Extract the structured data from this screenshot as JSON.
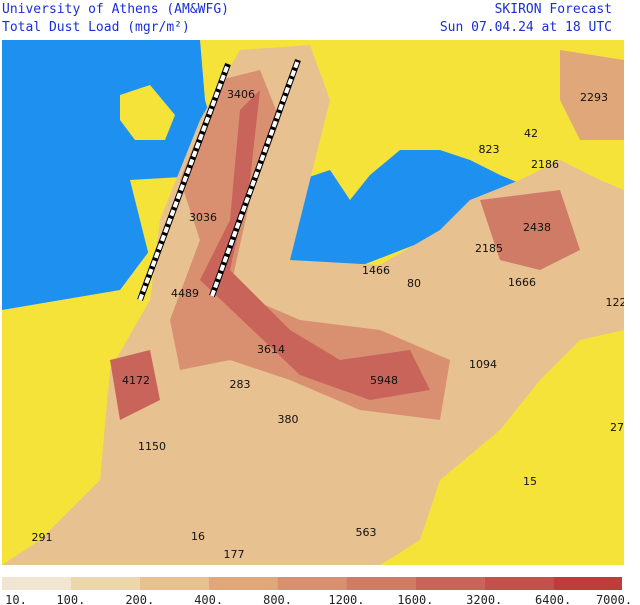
{
  "header": {
    "left": [
      "University of Athens (AM&WFG)",
      "Total Dust Load (mgr/m²)"
    ],
    "right": [
      "SKIRON Forecast",
      "Sun 07.04.24 at 18 UTC"
    ]
  },
  "map_labels": [
    "3406",
    "2293",
    "42",
    "823",
    "2186",
    "3036",
    "2438",
    "2185",
    "1466",
    "80",
    "1666",
    "4489",
    "122",
    "3614",
    "1094",
    "4172",
    "283",
    "5948",
    "380",
    "27",
    "1150",
    "15",
    "291",
    "16",
    "177",
    "563"
  ],
  "colorbar": {
    "labels": [
      "10.",
      "100.",
      "200.",
      "400.",
      "800.",
      "1200.",
      "1600.",
      "3200.",
      "6400.",
      "7000."
    ],
    "colors": [
      "#f2e6d2",
      "#ecd7ad",
      "#e7c18f",
      "#e0a77b",
      "#d99070",
      "#cf7b66",
      "#c8645a",
      "#c2504c",
      "#bd3c3c"
    ]
  }
}
